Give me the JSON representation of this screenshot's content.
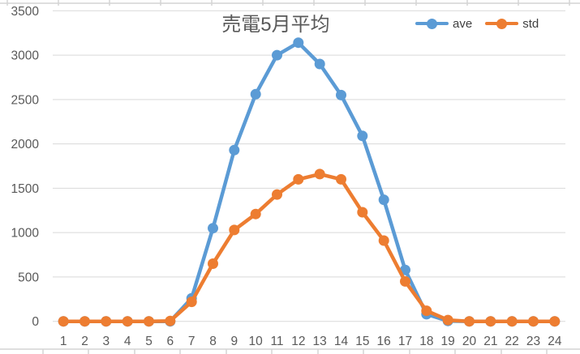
{
  "chart_data": {
    "type": "line",
    "title": "売電5月平均",
    "categories": [
      1,
      2,
      3,
      4,
      5,
      6,
      7,
      8,
      9,
      10,
      11,
      12,
      13,
      14,
      15,
      16,
      17,
      18,
      19,
      20,
      21,
      22,
      23,
      24
    ],
    "series": [
      {
        "name": "ave",
        "color": "#5B9BD5",
        "values": [
          0,
          0,
          0,
          0,
          0,
          0,
          260,
          1050,
          1930,
          2560,
          3000,
          3140,
          2900,
          2550,
          2090,
          1370,
          580,
          80,
          5,
          0,
          0,
          0,
          0,
          0
        ]
      },
      {
        "name": "std",
        "color": "#ED7D31",
        "values": [
          0,
          0,
          0,
          0,
          0,
          5,
          220,
          650,
          1030,
          1210,
          1430,
          1600,
          1660,
          1600,
          1230,
          910,
          450,
          120,
          15,
          0,
          0,
          0,
          0,
          0
        ]
      }
    ],
    "xlabel": "",
    "ylabel": "",
    "ylim": [
      0,
      3500
    ],
    "ytick_step": 500,
    "ytick_labels": [
      "0",
      "500",
      "1000",
      "1500",
      "2000",
      "2500",
      "3000",
      "3500"
    ],
    "grid": true,
    "legend_position": "top-right",
    "marker": "circle-on-line"
  },
  "colors": {
    "gridline": "#D9D9D9",
    "axis_text": "#595959",
    "title_text": "#595959",
    "legend_text": "#404040",
    "cell_border": "#D4D4D4",
    "background": "#FFFFFF"
  }
}
